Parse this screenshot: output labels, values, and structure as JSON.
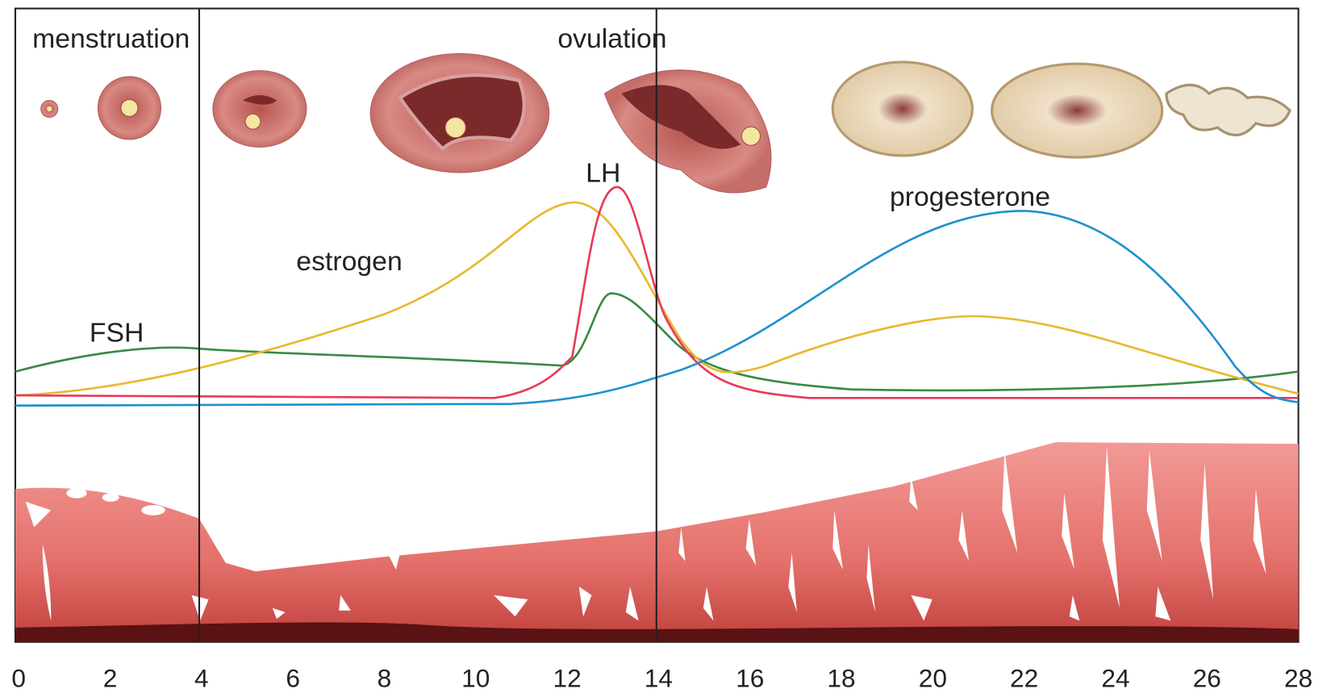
{
  "header": {
    "phases": [
      "menstruation",
      "ovulation"
    ]
  },
  "hormones": {
    "lh": "LH",
    "estrogen": "estrogen",
    "fsh": "FSH",
    "progesterone": "progesterone"
  },
  "x_axis": {
    "ticks": [
      0,
      2,
      4,
      6,
      8,
      10,
      12,
      14,
      16,
      18,
      20,
      22,
      24,
      26,
      28
    ]
  }
}
